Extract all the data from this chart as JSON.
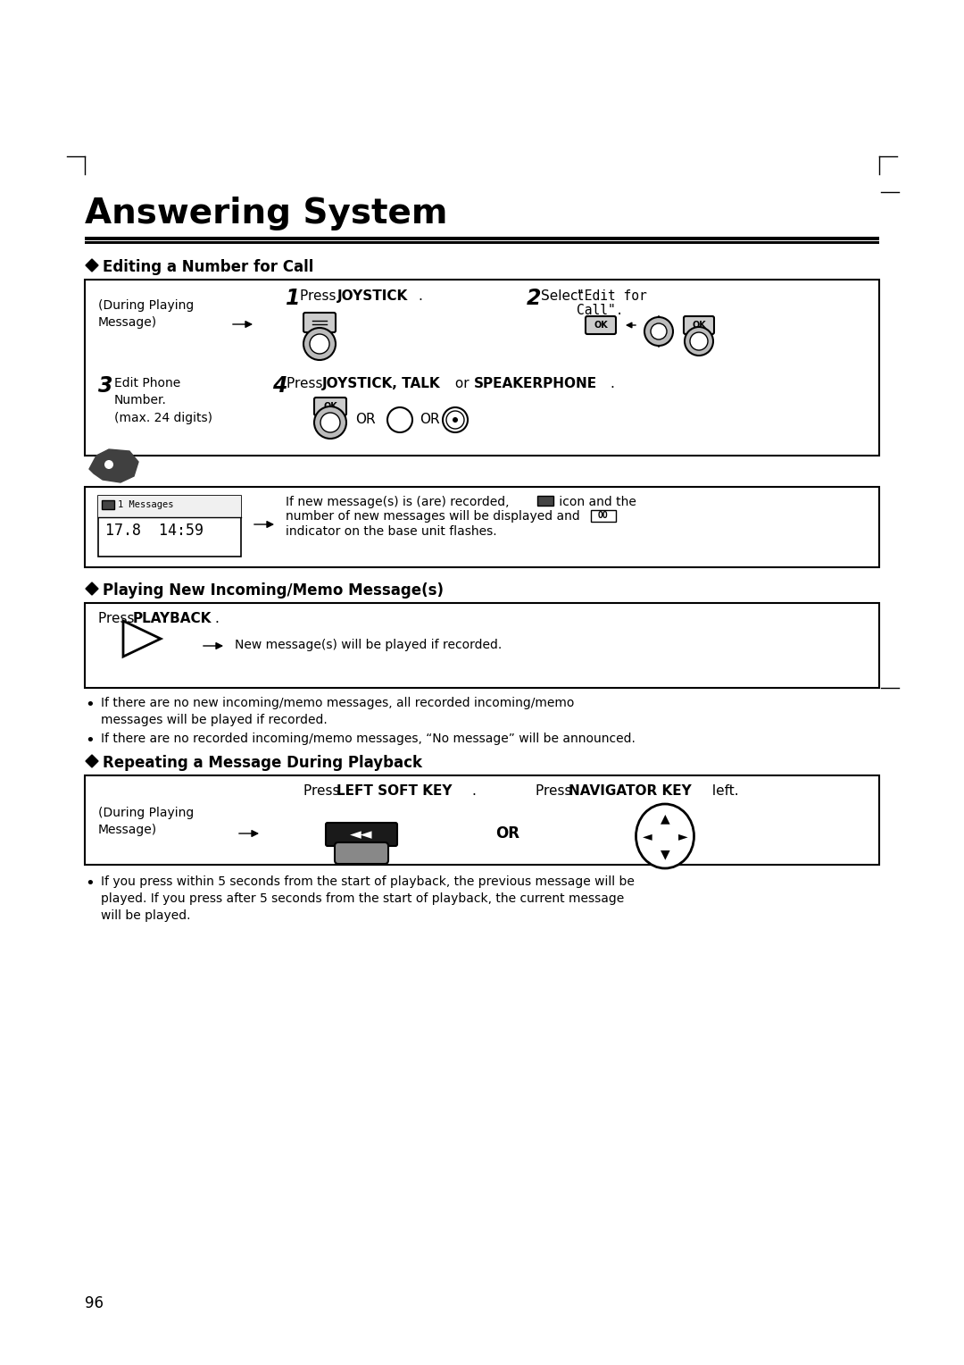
{
  "title": "Answering System",
  "bg_color": "#ffffff",
  "page_number": "96",
  "section1_header": "Editing a Number for Call",
  "section2_header": "Playing New Incoming/Memo Message(s)",
  "section3_header": "Repeating a Message During Playback",
  "step3_text": "Edit Phone\nNumber.\n(max. 24 digits)",
  "during_playing": "(During Playing\nMessage)",
  "bullet_text1": "If there are no new incoming/memo messages, all recorded incoming/memo\nmessages will be played if recorded.",
  "bullet_text2": "If there are no recorded incoming/memo messages, “No message” will be announced.",
  "new_msg_text": "New message(s) will be played if recorded.",
  "repeat_during": "(During Playing\nMessage)",
  "or_text": "OR",
  "bullet_repeat": "If you press within 5 seconds from the start of playback, the previous message will be\nplayed. If you press after 5 seconds from the start of playback, the current message\nwill be played."
}
